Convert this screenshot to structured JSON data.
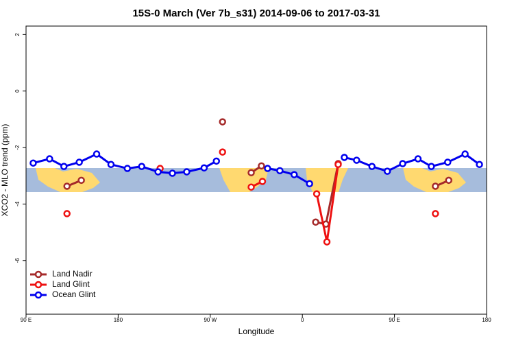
{
  "chart_data": {
    "type": "line",
    "title": "15S-0 March (Ver 7b_s31)   2014-09-06 to 2017-03-31",
    "xlabel": "Longitude",
    "ylabel": "XCO2 - MLO trend (ppm)",
    "xlim": [
      90,
      540
    ],
    "ylim": [
      -7.9,
      2.3
    ],
    "xticks": [
      {
        "value": 90,
        "label": "90 E"
      },
      {
        "value": 180,
        "label": "180"
      },
      {
        "value": 270,
        "label": "90 W"
      },
      {
        "value": 360,
        "label": "0"
      },
      {
        "value": 450,
        "label": "90 E"
      },
      {
        "value": 540,
        "label": "180"
      }
    ],
    "yticks": [
      2,
      0,
      -2,
      -4,
      -6
    ],
    "legend": "bottom-left",
    "series": [
      {
        "name": "Land Nadir",
        "color": "#a52a2a",
        "x": [
          130,
          144,
          null,
          282,
          null,
          310,
          320,
          null,
          373,
          383,
          395,
          null,
          490,
          503
        ],
        "values": [
          -3.37,
          -3.16,
          null,
          -1.09,
          null,
          -2.89,
          -2.65,
          null,
          -4.64,
          -4.71,
          -2.57,
          null,
          -3.37,
          -3.16
        ]
      },
      {
        "name": "Land Glint",
        "color": "#ee1111",
        "x": [
          130,
          null,
          221,
          null,
          282,
          null,
          310,
          321,
          null,
          374,
          384,
          395,
          null,
          490
        ],
        "values": [
          -4.34,
          null,
          -2.74,
          null,
          -2.16,
          null,
          -3.4,
          -3.2,
          null,
          -3.64,
          -5.34,
          -2.6,
          null,
          -4.34
        ]
      },
      {
        "name": "Ocean Glint",
        "color": "#0000ee",
        "x": [
          97,
          113,
          127,
          142,
          159,
          173,
          189,
          203,
          219,
          233,
          247,
          264,
          276,
          null,
          326,
          338,
          352,
          367,
          null,
          401,
          413,
          428,
          443,
          458,
          473,
          486,
          502,
          519,
          533
        ],
        "values": [
          -2.55,
          -2.4,
          -2.67,
          -2.52,
          -2.23,
          -2.6,
          -2.74,
          -2.67,
          -2.86,
          -2.91,
          -2.86,
          -2.72,
          -2.48,
          null,
          -2.74,
          -2.82,
          -2.96,
          -3.28,
          null,
          -2.35,
          -2.45,
          -2.67,
          -2.84,
          -2.57,
          -2.4,
          -2.67,
          -2.52,
          -2.23,
          -2.6
        ]
      }
    ]
  }
}
